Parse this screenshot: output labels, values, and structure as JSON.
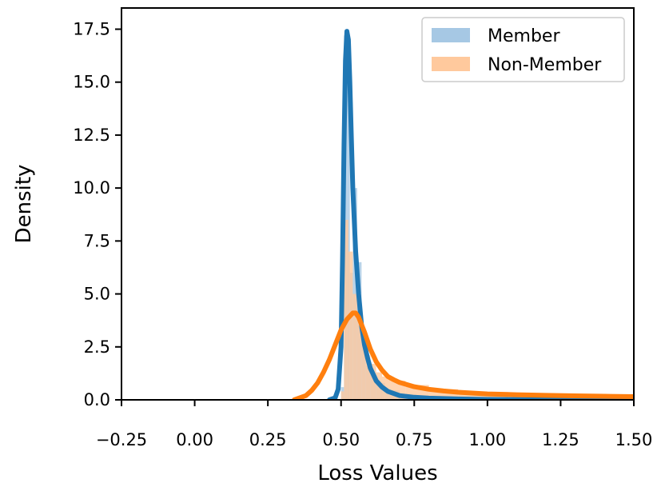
{
  "chart_data": {
    "type": "histogram+kde",
    "title": "",
    "xlabel": "Loss Values",
    "ylabel": "Density",
    "xlim": [
      -0.25,
      1.5
    ],
    "ylim": [
      0,
      18.5
    ],
    "xticks": [
      -0.25,
      0.0,
      0.25,
      0.5,
      0.75,
      1.0,
      1.25,
      1.5
    ],
    "xtick_labels": [
      "−0.25",
      "0.00",
      "0.25",
      "0.50",
      "0.75",
      "1.00",
      "1.25",
      "1.50"
    ],
    "yticks": [
      0.0,
      2.5,
      5.0,
      7.5,
      10.0,
      12.5,
      15.0,
      17.5
    ],
    "ytick_labels": [
      "0.0",
      "2.5",
      "5.0",
      "7.5",
      "10.0",
      "12.5",
      "15.0",
      "17.5"
    ],
    "legend_position": "top-right",
    "series": [
      {
        "name": "Member",
        "hist_color": "#a6c8e4",
        "line_color": "#1f77b4",
        "hist_bins": [
          {
            "x0": 0.5,
            "x1": 0.51,
            "h": 0.6
          },
          {
            "x0": 0.51,
            "x1": 0.52,
            "h": 17.2
          },
          {
            "x0": 0.52,
            "x1": 0.53,
            "h": 15.5
          },
          {
            "x0": 0.53,
            "x1": 0.54,
            "h": 6.0
          },
          {
            "x0": 0.54,
            "x1": 0.555,
            "h": 10.0
          },
          {
            "x0": 0.555,
            "x1": 0.57,
            "h": 6.5
          },
          {
            "x0": 0.57,
            "x1": 0.585,
            "h": 3.0
          },
          {
            "x0": 0.585,
            "x1": 0.6,
            "h": 1.6
          },
          {
            "x0": 0.6,
            "x1": 0.62,
            "h": 1.2
          },
          {
            "x0": 0.62,
            "x1": 0.65,
            "h": 0.8
          },
          {
            "x0": 0.65,
            "x1": 0.7,
            "h": 0.45
          },
          {
            "x0": 0.7,
            "x1": 0.8,
            "h": 0.2
          },
          {
            "x0": 0.8,
            "x1": 0.95,
            "h": 0.08
          }
        ],
        "kde_x": [
          0.46,
          0.48,
          0.49,
          0.5,
          0.505,
          0.51,
          0.515,
          0.52,
          0.525,
          0.53,
          0.535,
          0.54,
          0.55,
          0.56,
          0.57,
          0.58,
          0.59,
          0.6,
          0.62,
          0.64,
          0.66,
          0.7,
          0.75,
          0.8,
          0.9,
          1.0,
          1.2,
          1.5
        ],
        "kde_y": [
          0.0,
          0.1,
          0.5,
          2.5,
          6.5,
          12.0,
          16.0,
          17.4,
          17.0,
          15.0,
          12.5,
          10.0,
          7.0,
          5.0,
          3.5,
          2.6,
          2.0,
          1.5,
          0.9,
          0.6,
          0.4,
          0.2,
          0.12,
          0.08,
          0.04,
          0.02,
          0.01,
          0.0
        ]
      },
      {
        "name": "Non-Member",
        "hist_color": "#ffc99d",
        "line_color": "#ff7f0e",
        "hist_bins": [
          {
            "x0": 0.5,
            "x1": 0.51,
            "h": 0.4
          },
          {
            "x0": 0.51,
            "x1": 0.525,
            "h": 8.5
          },
          {
            "x0": 0.525,
            "x1": 0.54,
            "h": 7.0
          },
          {
            "x0": 0.54,
            "x1": 0.555,
            "h": 5.0
          },
          {
            "x0": 0.555,
            "x1": 0.57,
            "h": 3.8
          },
          {
            "x0": 0.57,
            "x1": 0.585,
            "h": 2.8
          },
          {
            "x0": 0.585,
            "x1": 0.6,
            "h": 2.1
          },
          {
            "x0": 0.6,
            "x1": 0.62,
            "h": 1.7
          },
          {
            "x0": 0.62,
            "x1": 0.64,
            "h": 1.3
          },
          {
            "x0": 0.64,
            "x1": 0.67,
            "h": 1.1
          },
          {
            "x0": 0.67,
            "x1": 0.72,
            "h": 0.9
          },
          {
            "x0": 0.72,
            "x1": 0.8,
            "h": 0.7
          },
          {
            "x0": 0.8,
            "x1": 0.9,
            "h": 0.5
          },
          {
            "x0": 0.9,
            "x1": 1.0,
            "h": 0.35
          },
          {
            "x0": 1.0,
            "x1": 1.2,
            "h": 0.22
          },
          {
            "x0": 1.2,
            "x1": 1.5,
            "h": 0.15
          }
        ],
        "kde_x": [
          0.34,
          0.38,
          0.4,
          0.42,
          0.44,
          0.46,
          0.48,
          0.5,
          0.52,
          0.54,
          0.55,
          0.56,
          0.58,
          0.6,
          0.62,
          0.64,
          0.66,
          0.68,
          0.7,
          0.75,
          0.8,
          0.85,
          0.9,
          1.0,
          1.1,
          1.2,
          1.3,
          1.4,
          1.5
        ],
        "kde_y": [
          0.0,
          0.2,
          0.45,
          0.8,
          1.3,
          1.9,
          2.6,
          3.3,
          3.8,
          4.1,
          4.1,
          3.9,
          3.2,
          2.4,
          1.8,
          1.4,
          1.1,
          0.95,
          0.82,
          0.62,
          0.5,
          0.42,
          0.36,
          0.28,
          0.24,
          0.21,
          0.19,
          0.17,
          0.15
        ]
      }
    ]
  }
}
